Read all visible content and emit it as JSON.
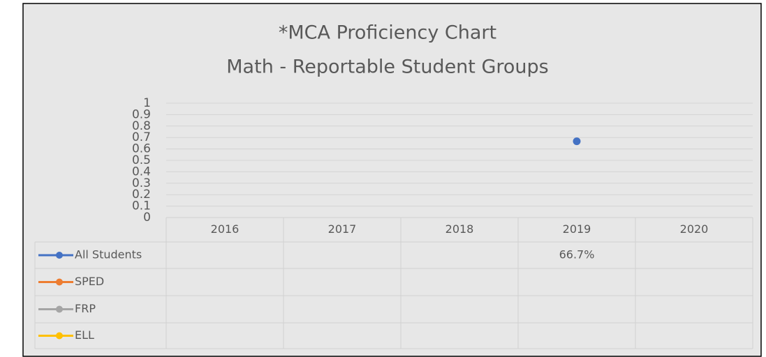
{
  "chart_data": {
    "type": "line",
    "title": "*MCA Proficiency Chart",
    "subtitle": "Math - Reportable Student Groups",
    "categories": [
      "2016",
      "2017",
      "2018",
      "2019",
      "2020"
    ],
    "series": [
      {
        "name": "All Students",
        "color": "#4472c4",
        "values": [
          null,
          null,
          null,
          0.667,
          null
        ],
        "value_labels": [
          null,
          null,
          null,
          "66.7%",
          null
        ]
      },
      {
        "name": "SPED",
        "color": "#ed7d31",
        "values": [
          null,
          null,
          null,
          null,
          null
        ]
      },
      {
        "name": "FRP",
        "color": "#a5a5a5",
        "values": [
          null,
          null,
          null,
          null,
          null
        ]
      },
      {
        "name": "ELL",
        "color": "#ffc000",
        "values": [
          null,
          null,
          null,
          null,
          null
        ]
      }
    ],
    "ylim": [
      0,
      1
    ],
    "yticks": [
      0,
      0.1,
      0.2,
      0.3,
      0.4,
      0.5,
      0.6,
      0.7,
      0.8,
      0.9,
      1
    ],
    "grid": true,
    "data_table": true
  }
}
